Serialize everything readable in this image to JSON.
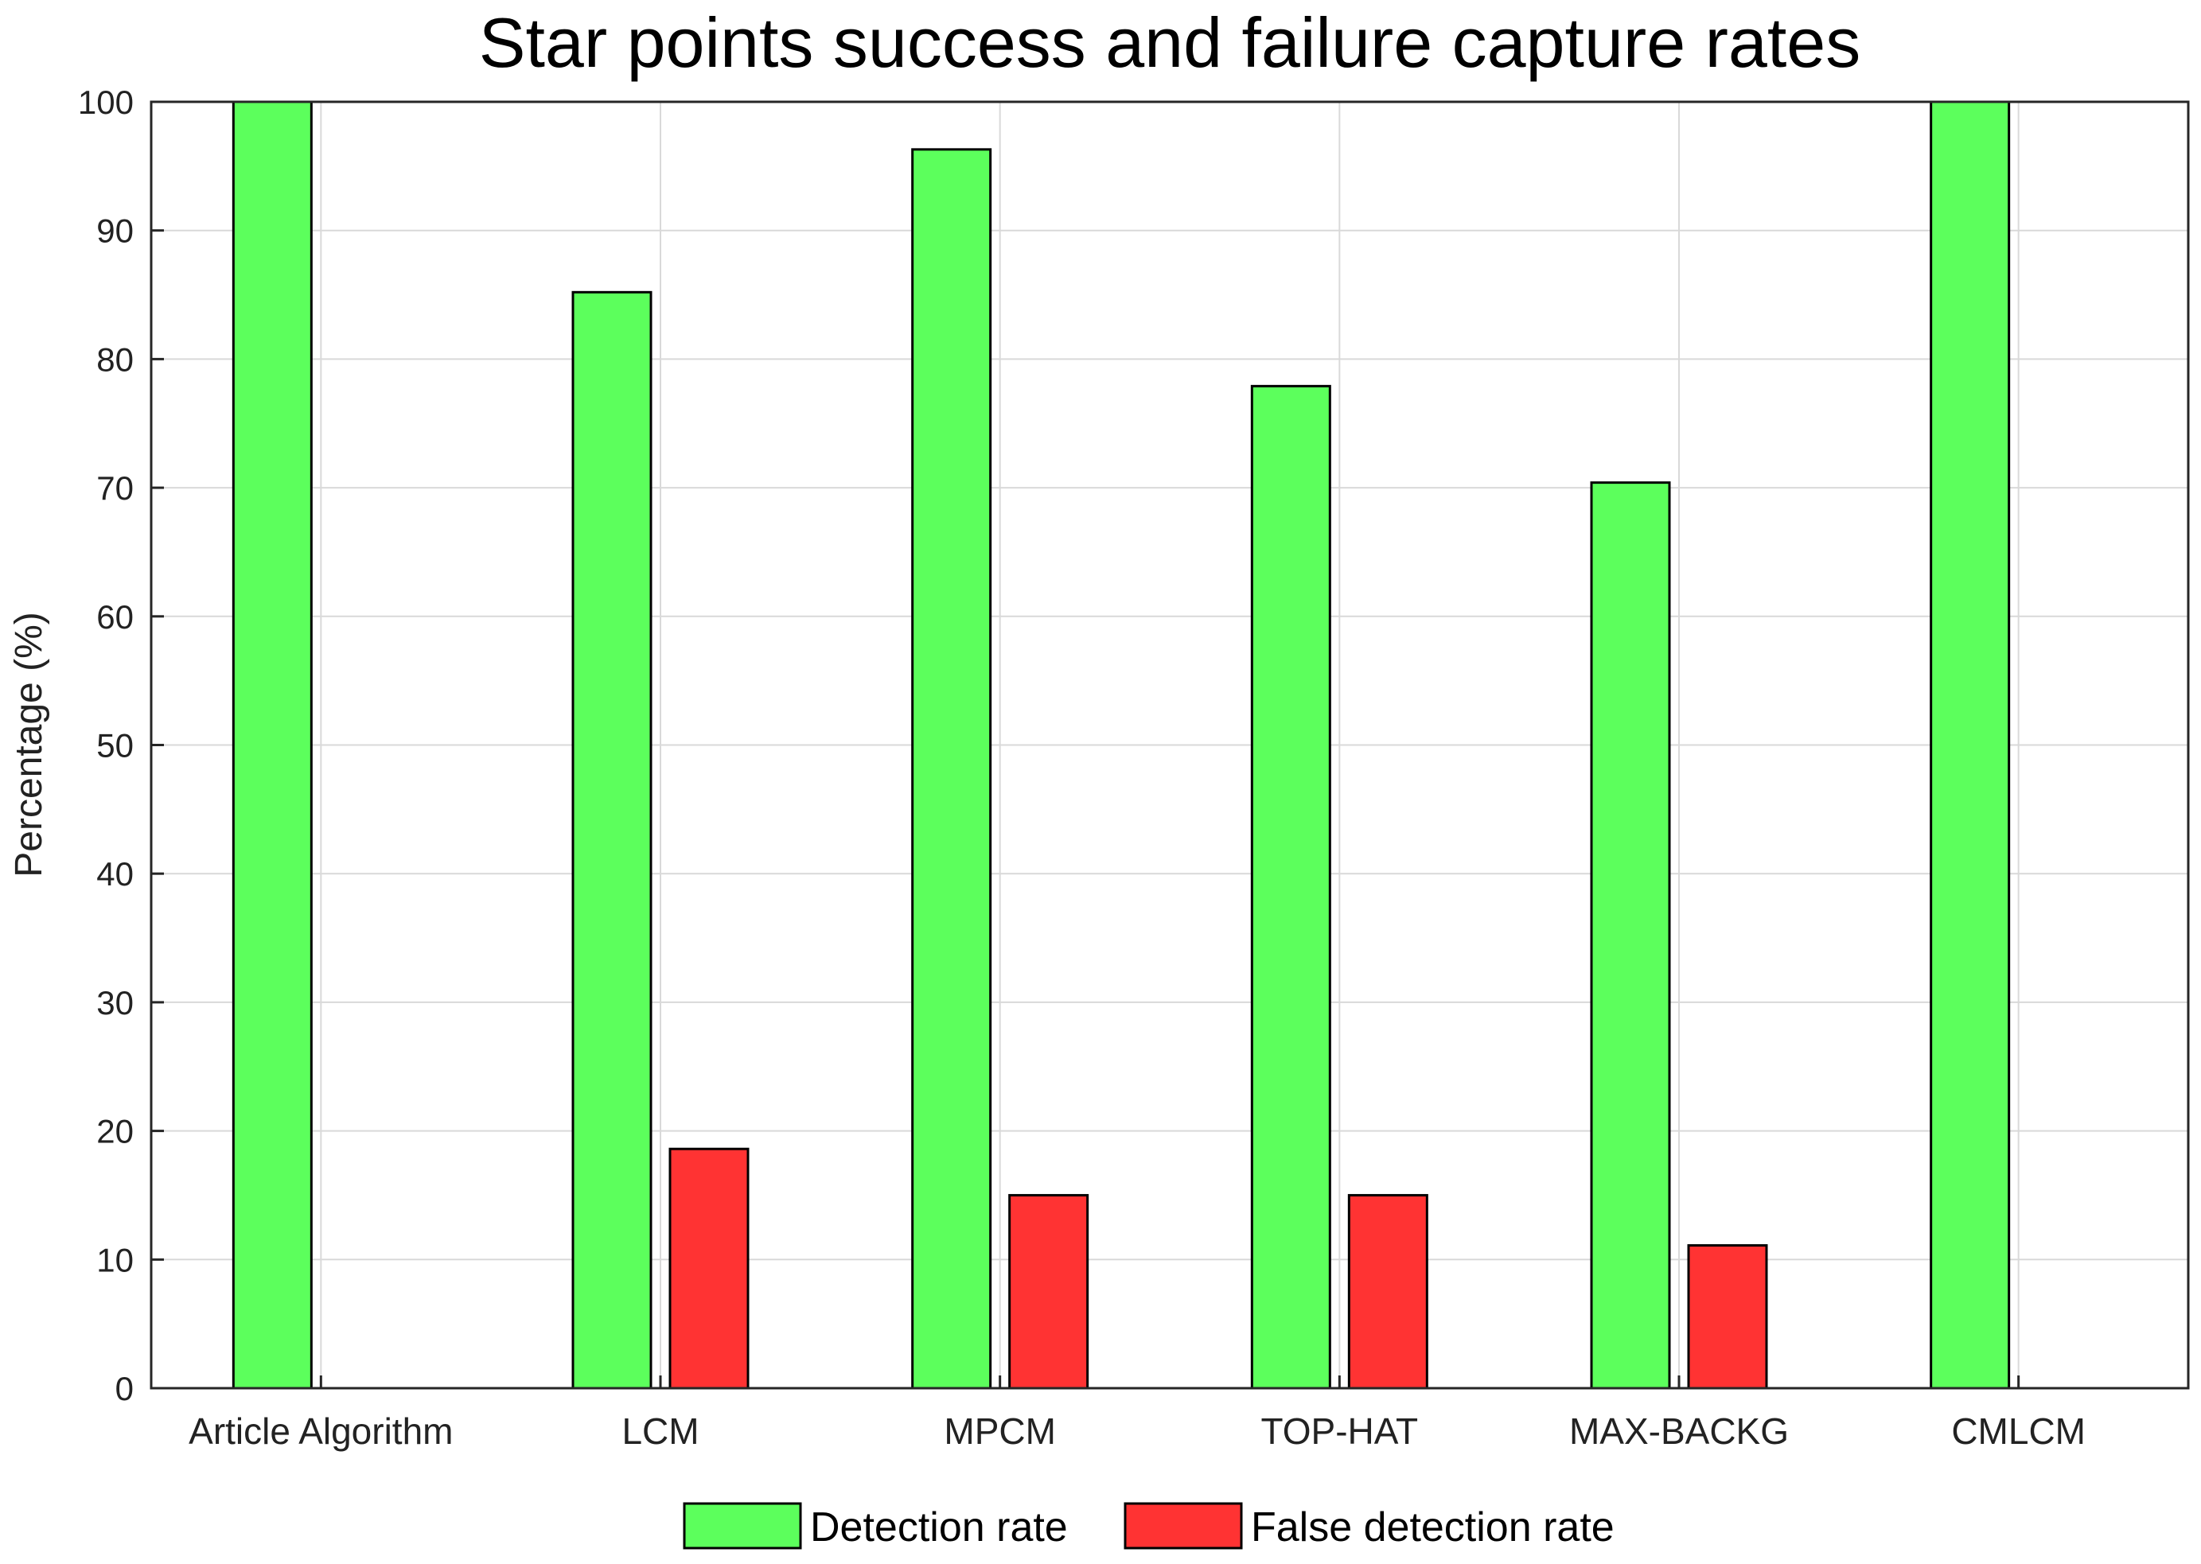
{
  "chart_data": {
    "type": "bar",
    "title": "Star points success and failure capture rates",
    "xlabel": "",
    "ylabel": "Percentage (%)",
    "ylim": [
      0,
      100
    ],
    "yticks": [
      "0",
      "10",
      "20",
      "30",
      "40",
      "50",
      "60",
      "70",
      "80",
      "90",
      "100"
    ],
    "categories": [
      "Article Algorithm",
      "LCM",
      "MPCM",
      "TOP-HAT",
      "MAX-BACKG",
      "CMLCM"
    ],
    "series": [
      {
        "name": "Detection rate",
        "color": "#5cff5c",
        "values": [
          100,
          85.2,
          96.3,
          77.9,
          70.4,
          100
        ]
      },
      {
        "name": "False detection rate",
        "color": "#ff3333",
        "values": [
          0,
          18.6,
          15.0,
          15.0,
          11.1,
          0
        ]
      }
    ],
    "grid": true,
    "legend_position": "bottom-center"
  }
}
